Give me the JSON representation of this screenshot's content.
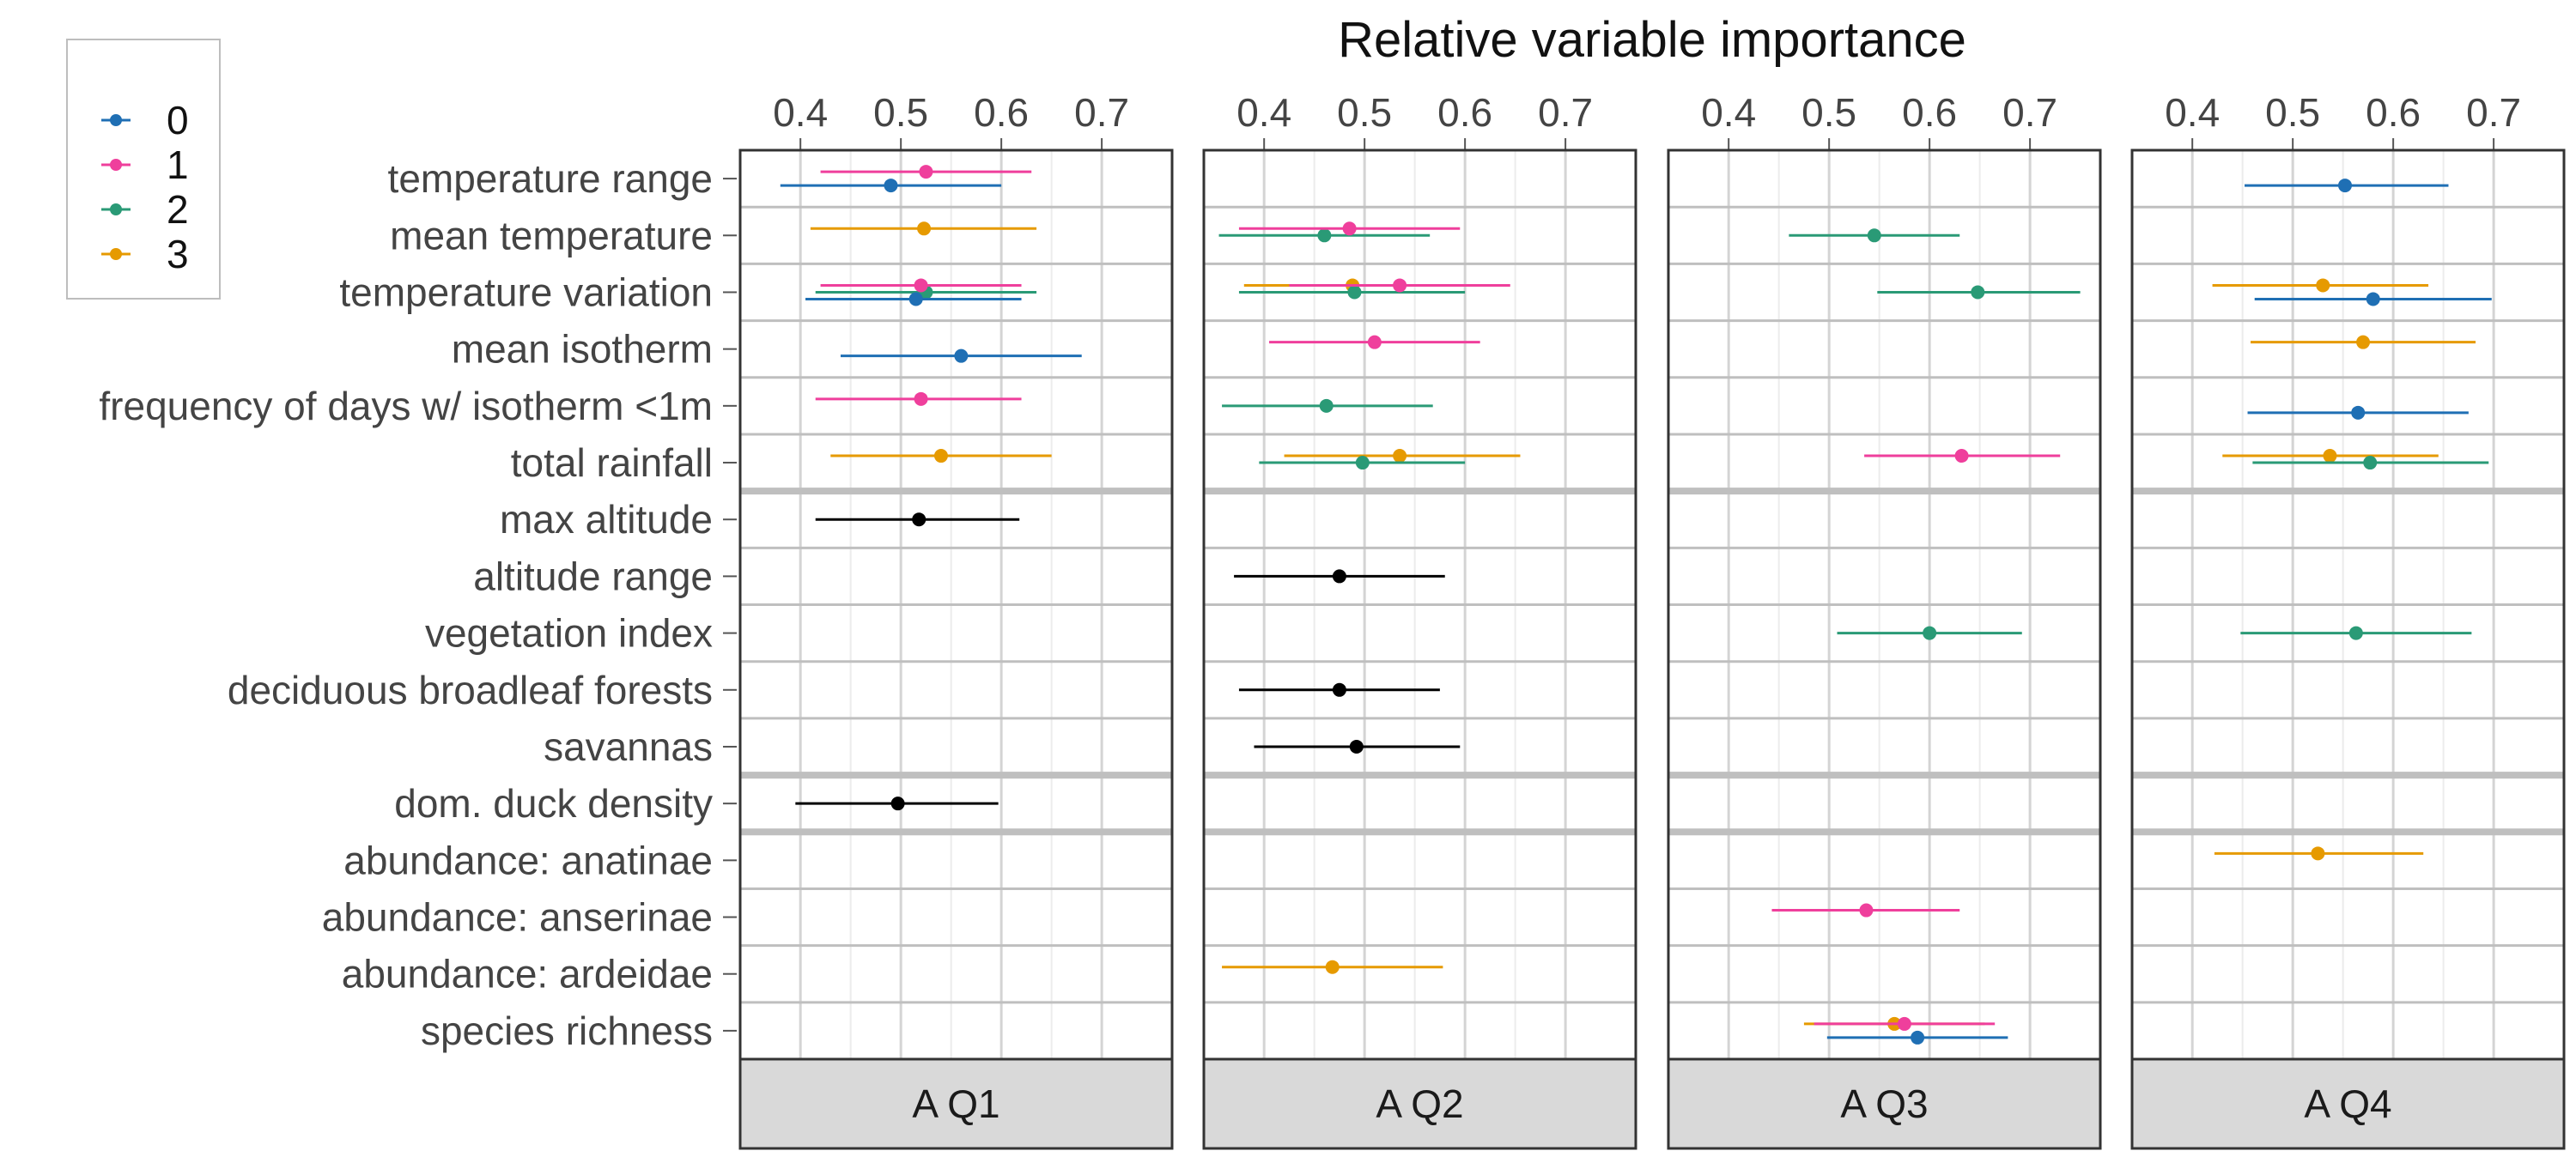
{
  "chart_data": {
    "type": "forest",
    "title": "Relative variable importance",
    "xticks": [
      0.4,
      0.5,
      0.6,
      0.7
    ],
    "xlim": [
      0.34,
      0.77
    ],
    "grid": true,
    "legend": {
      "position": "top-left",
      "entries": [
        {
          "label": "0",
          "color": "#1f6fb4"
        },
        {
          "label": "1",
          "color": "#ef3f9c"
        },
        {
          "label": "2",
          "color": "#2a9a76"
        },
        {
          "label": "3",
          "color": "#e69a00"
        }
      ]
    },
    "variables": [
      "temperature range",
      "mean temperature",
      "temperature variation",
      "mean isotherm",
      "frequency of days w/ isotherm <1m",
      "total rainfall",
      "max altitude",
      "altitude range",
      "vegetation index",
      "deciduous broadleaf forests",
      "savannas",
      "dom. duck density",
      "abundance: anatinae",
      "abundance: anserinae",
      "abundance: ardeidae",
      "species richness"
    ],
    "group_breaks_after": [
      5,
      10,
      11
    ],
    "panels": [
      {
        "label": "A Q1",
        "points": [
          {
            "variable": "temperature range",
            "group": "1",
            "est": 0.525,
            "lo": 0.42,
            "hi": 0.63
          },
          {
            "variable": "temperature range",
            "group": "0",
            "est": 0.49,
            "lo": 0.38,
            "hi": 0.6
          },
          {
            "variable": "mean temperature",
            "group": "3",
            "est": 0.523,
            "lo": 0.41,
            "hi": 0.635
          },
          {
            "variable": "temperature variation",
            "group": "2",
            "est": 0.525,
            "lo": 0.415,
            "hi": 0.635
          },
          {
            "variable": "temperature variation",
            "group": "1",
            "est": 0.52,
            "lo": 0.42,
            "hi": 0.62
          },
          {
            "variable": "temperature variation",
            "group": "0",
            "est": 0.515,
            "lo": 0.405,
            "hi": 0.62
          },
          {
            "variable": "mean isotherm",
            "group": "0",
            "est": 0.56,
            "lo": 0.44,
            "hi": 0.68
          },
          {
            "variable": "frequency of days w/ isotherm <1m",
            "group": "1",
            "est": 0.52,
            "lo": 0.415,
            "hi": 0.62
          },
          {
            "variable": "total rainfall",
            "group": "3",
            "est": 0.54,
            "lo": 0.43,
            "hi": 0.65
          },
          {
            "variable": "max altitude",
            "group": "black",
            "est": 0.518,
            "lo": 0.415,
            "hi": 0.618
          },
          {
            "variable": "dom. duck density",
            "group": "black",
            "est": 0.497,
            "lo": 0.395,
            "hi": 0.597
          }
        ]
      },
      {
        "label": "A Q2",
        "points": [
          {
            "variable": "mean temperature",
            "group": "2",
            "est": 0.46,
            "lo": 0.355,
            "hi": 0.565
          },
          {
            "variable": "mean temperature",
            "group": "1",
            "est": 0.485,
            "lo": 0.375,
            "hi": 0.595
          },
          {
            "variable": "temperature variation",
            "group": "3",
            "est": 0.488,
            "lo": 0.38,
            "hi": 0.59
          },
          {
            "variable": "temperature variation",
            "group": "2",
            "est": 0.49,
            "lo": 0.375,
            "hi": 0.6
          },
          {
            "variable": "temperature variation",
            "group": "1",
            "est": 0.535,
            "lo": 0.425,
            "hi": 0.645
          },
          {
            "variable": "mean isotherm",
            "group": "1",
            "est": 0.51,
            "lo": 0.405,
            "hi": 0.615
          },
          {
            "variable": "frequency of days w/ isotherm <1m",
            "group": "2",
            "est": 0.462,
            "lo": 0.358,
            "hi": 0.568
          },
          {
            "variable": "total rainfall",
            "group": "3",
            "est": 0.535,
            "lo": 0.42,
            "hi": 0.655
          },
          {
            "variable": "total rainfall",
            "group": "2",
            "est": 0.498,
            "lo": 0.395,
            "hi": 0.6
          },
          {
            "variable": "altitude range",
            "group": "black",
            "est": 0.475,
            "lo": 0.37,
            "hi": 0.58
          },
          {
            "variable": "deciduous broadleaf forests",
            "group": "black",
            "est": 0.475,
            "lo": 0.375,
            "hi": 0.575
          },
          {
            "variable": "savannas",
            "group": "black",
            "est": 0.492,
            "lo": 0.39,
            "hi": 0.595
          },
          {
            "variable": "abundance: ardeidae",
            "group": "3",
            "est": 0.468,
            "lo": 0.358,
            "hi": 0.578
          }
        ]
      },
      {
        "label": "A Q3",
        "points": [
          {
            "variable": "mean temperature",
            "group": "2",
            "est": 0.545,
            "lo": 0.46,
            "hi": 0.63
          },
          {
            "variable": "temperature variation",
            "group": "2",
            "est": 0.648,
            "lo": 0.548,
            "hi": 0.75
          },
          {
            "variable": "total rainfall",
            "group": "1",
            "est": 0.632,
            "lo": 0.535,
            "hi": 0.73
          },
          {
            "variable": "vegetation index",
            "group": "2",
            "est": 0.6,
            "lo": 0.508,
            "hi": 0.692
          },
          {
            "variable": "abundance: anserinae",
            "group": "1",
            "est": 0.537,
            "lo": 0.443,
            "hi": 0.63
          },
          {
            "variable": "species richness",
            "group": "3",
            "est": 0.565,
            "lo": 0.475,
            "hi": 0.655
          },
          {
            "variable": "species richness",
            "group": "1",
            "est": 0.575,
            "lo": 0.485,
            "hi": 0.665
          },
          {
            "variable": "species richness",
            "group": "0",
            "est": 0.588,
            "lo": 0.498,
            "hi": 0.678
          }
        ]
      },
      {
        "label": "A Q4",
        "points": [
          {
            "variable": "temperature range",
            "group": "0",
            "est": 0.552,
            "lo": 0.452,
            "hi": 0.655
          },
          {
            "variable": "temperature variation",
            "group": "3",
            "est": 0.53,
            "lo": 0.42,
            "hi": 0.635
          },
          {
            "variable": "temperature variation",
            "group": "0",
            "est": 0.58,
            "lo": 0.462,
            "hi": 0.698
          },
          {
            "variable": "mean isotherm",
            "group": "3",
            "est": 0.57,
            "lo": 0.458,
            "hi": 0.682
          },
          {
            "variable": "frequency of days w/ isotherm <1m",
            "group": "0",
            "est": 0.565,
            "lo": 0.455,
            "hi": 0.675
          },
          {
            "variable": "total rainfall",
            "group": "3",
            "est": 0.537,
            "lo": 0.43,
            "hi": 0.645
          },
          {
            "variable": "total rainfall",
            "group": "2",
            "est": 0.577,
            "lo": 0.46,
            "hi": 0.695
          },
          {
            "variable": "vegetation index",
            "group": "2",
            "est": 0.563,
            "lo": 0.448,
            "hi": 0.678
          },
          {
            "variable": "abundance: anatinae",
            "group": "3",
            "est": 0.525,
            "lo": 0.422,
            "hi": 0.63
          }
        ]
      }
    ]
  },
  "colors": {
    "black": "#000000",
    "strip_fill": "#d9d9d9",
    "panel_border": "#333333",
    "grid_major": "#d4d4d4",
    "grid_minor": "#ececec",
    "row_divider": "#bfbfbf",
    "text": "#444444",
    "title": "#111111"
  }
}
